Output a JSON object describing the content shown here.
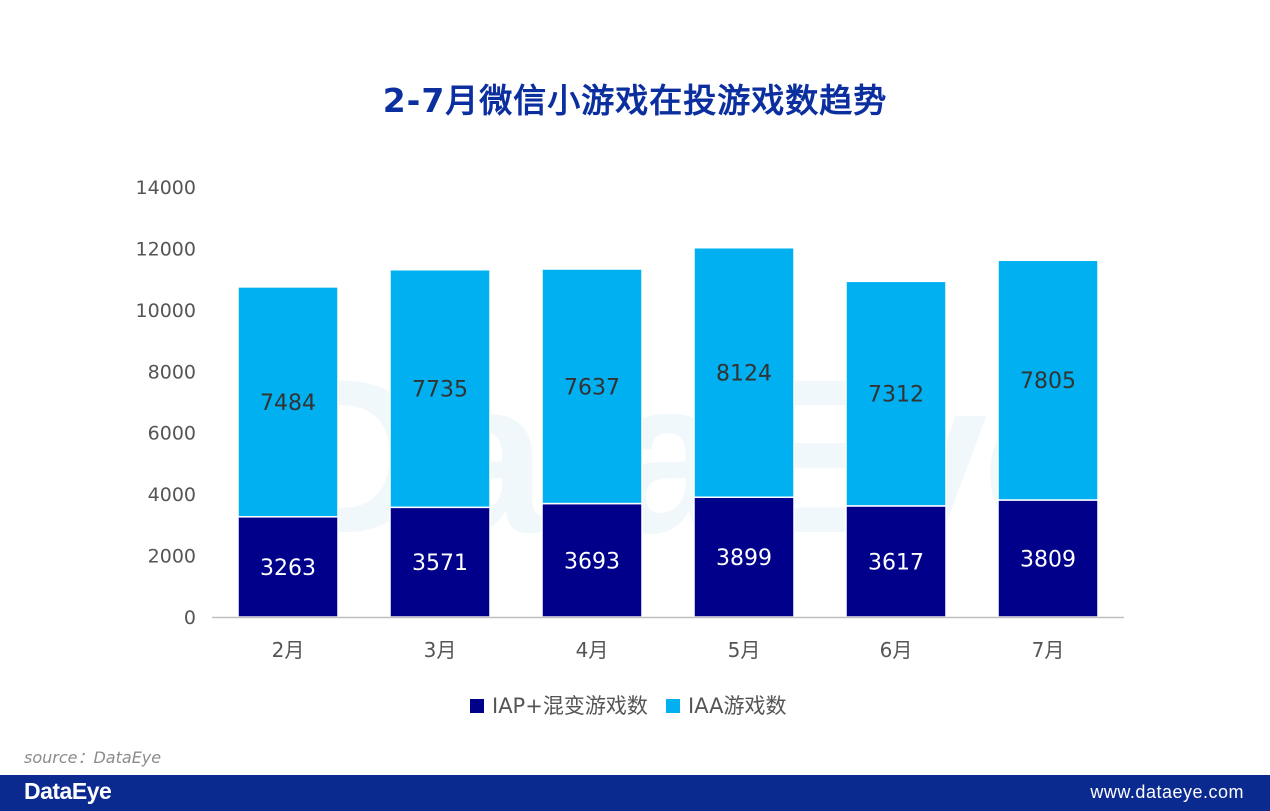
{
  "title": "2-7月微信小游戏在投游戏数趋势",
  "source": "source：DataEye",
  "watermark": "DataEye",
  "footer": {
    "logo": "DataEye",
    "url": "www.dataeye.com"
  },
  "colors": {
    "title": "#0c2fa0",
    "iap": "#00008b",
    "iaa": "#00b0f0",
    "footer_bar": "#0b2a8f"
  },
  "chart_data": {
    "type": "bar",
    "stacked": true,
    "categories": [
      "2月",
      "3月",
      "4月",
      "5月",
      "6月",
      "7月"
    ],
    "series": [
      {
        "name": "IAP+混变游戏数",
        "values": [
          3263,
          3571,
          3693,
          3899,
          3617,
          3809
        ],
        "color": "#00008b"
      },
      {
        "name": "IAA游戏数",
        "values": [
          7484,
          7735,
          7637,
          8124,
          7312,
          7805
        ],
        "color": "#00b0f0"
      }
    ],
    "ylim": [
      0,
      14000
    ],
    "yticks": [
      0,
      2000,
      4000,
      6000,
      8000,
      10000,
      12000,
      14000
    ],
    "grid": false,
    "legend": "bottom"
  }
}
